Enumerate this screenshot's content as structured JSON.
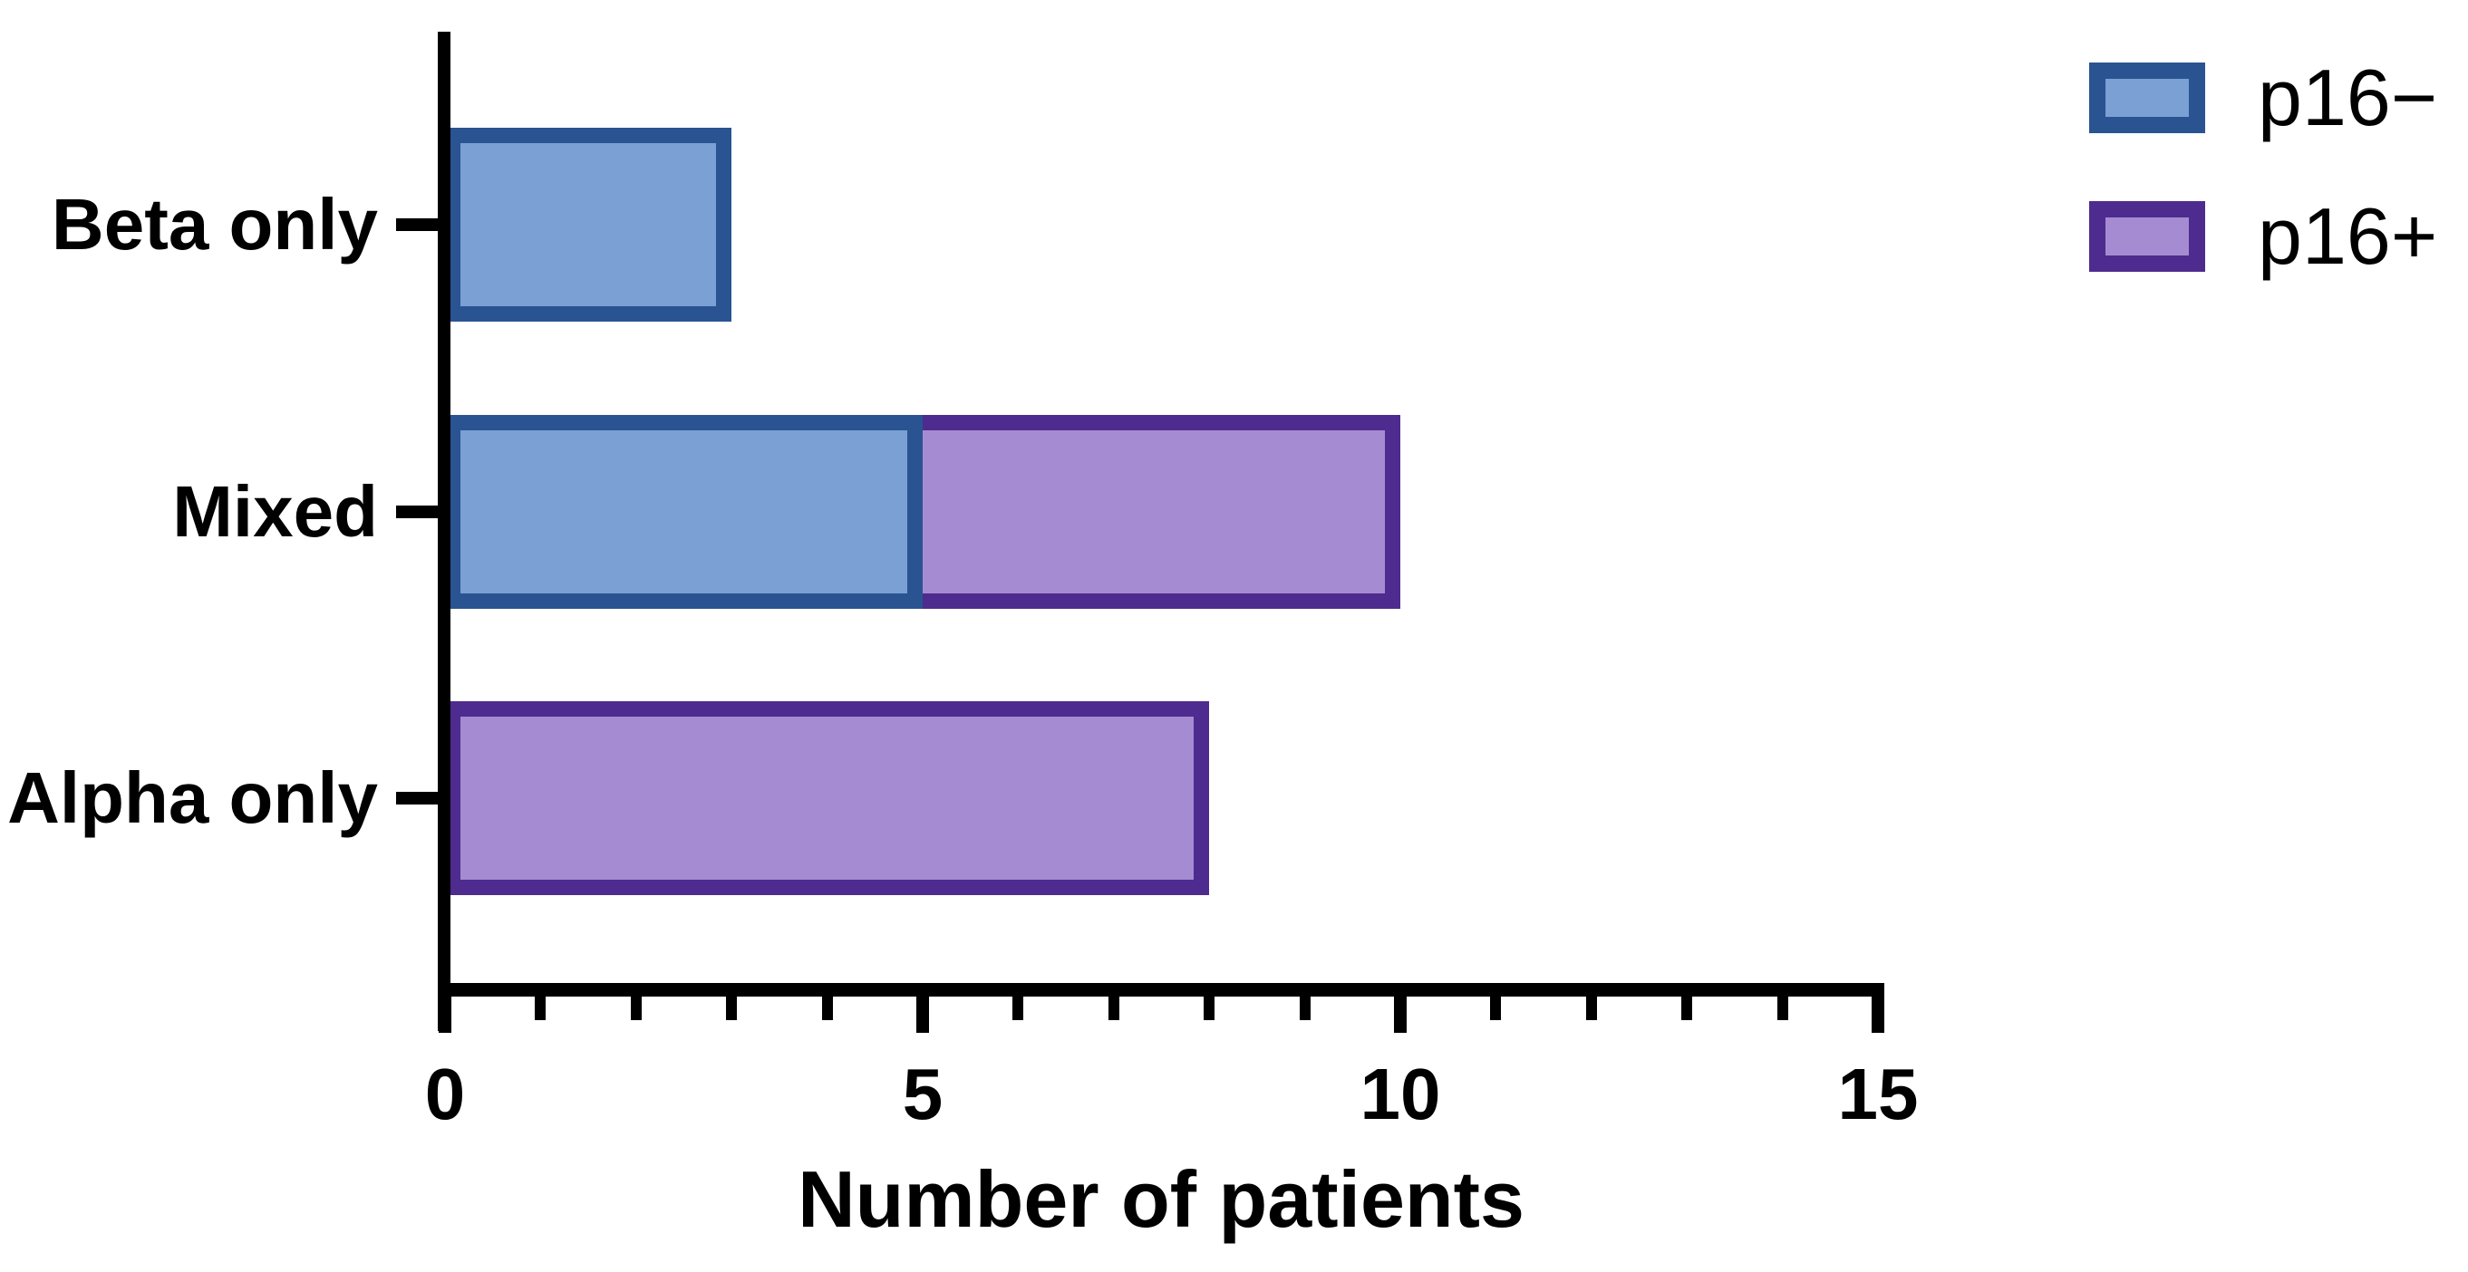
{
  "chart_data": {
    "type": "bar",
    "orientation": "horizontal",
    "stacked": true,
    "title": "",
    "xlabel": "Number of patients",
    "ylabel": "",
    "categories": [
      "Beta only",
      "Mixed",
      "Alpha only"
    ],
    "series": [
      {
        "name": "p16−",
        "fill_color": "#7BA0D4",
        "border_color": "#2A5391",
        "values": [
          3,
          5,
          0
        ]
      },
      {
        "name": "p16+",
        "fill_color": "#A58CD2",
        "border_color": "#4E2B8E",
        "values": [
          0,
          5,
          8
        ]
      }
    ],
    "totals": [
      3,
      10,
      8
    ],
    "xlim": [
      0,
      15
    ],
    "x_major_ticks": [
      0,
      5,
      10,
      15
    ],
    "x_minor_tick_interval": 1,
    "grid": false,
    "legend_position": "top-right",
    "axis_color": "#000000",
    "background_color": "#ffffff"
  },
  "legend": {
    "entries": [
      {
        "label": "p16−",
        "fill_color": "#7BA0D4",
        "border_color": "#2A5391"
      },
      {
        "label": "p16+",
        "fill_color": "#A58CD2",
        "border_color": "#4E2B8E"
      }
    ]
  },
  "x_axis": {
    "tick_labels": [
      "0",
      "5",
      "10",
      "15"
    ],
    "title": "Number of patients"
  },
  "y_axis": {
    "category_labels": [
      "Beta only",
      "Mixed",
      "Alpha only"
    ]
  }
}
